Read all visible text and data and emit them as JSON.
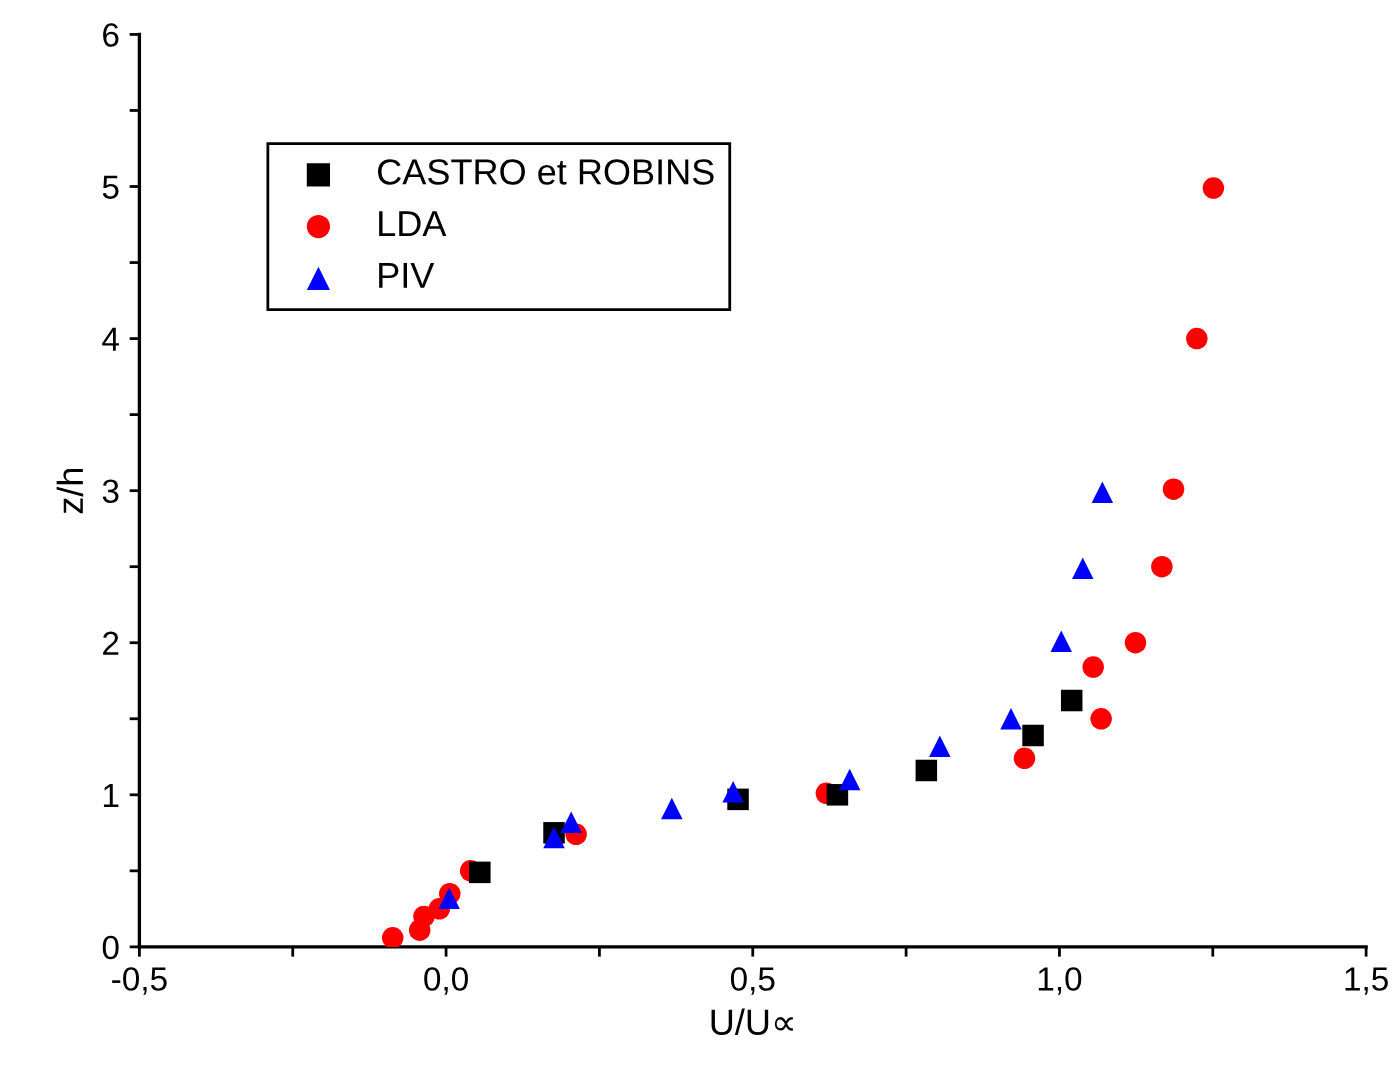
{
  "chart_data": {
    "type": "scatter",
    "xlabel": "U/U∝",
    "ylabel": "z/h",
    "xlim": [
      -0.5,
      1.5
    ],
    "ylim": [
      0,
      6
    ],
    "xticks": [
      {
        "value": -0.5,
        "label": "-0,5"
      },
      {
        "value": -0.25,
        "label": null
      },
      {
        "value": 0,
        "label": "0,0"
      },
      {
        "value": 0.25,
        "label": null
      },
      {
        "value": 0.5,
        "label": "0,5"
      },
      {
        "value": 0.75,
        "label": null
      },
      {
        "value": 1,
        "label": "1,0"
      },
      {
        "value": 1.25,
        "label": null
      },
      {
        "value": 1.5,
        "label": "1,5"
      }
    ],
    "yticks": [
      0,
      {
        "value": 0.5,
        "label": null
      },
      1,
      {
        "value": 1.5,
        "label": null
      },
      2,
      {
        "value": 2.5,
        "label": null
      },
      3,
      {
        "value": 3.5,
        "label": null
      },
      4,
      {
        "value": 4.5,
        "label": null
      },
      5,
      {
        "value": 5.5,
        "label": null
      },
      6
    ],
    "grid": false,
    "legend": "top left",
    "series": [
      {
        "name": "CASTRO et ROBINS",
        "color": "#000000",
        "marker": "square",
        "x": [
          0.055,
          0.176,
          0.476,
          0.638,
          0.783,
          0.957,
          1.02
        ],
        "values": [
          0.49,
          0.75,
          0.97,
          1.0,
          1.16,
          1.39,
          1.62
        ]
      },
      {
        "name": "LDA",
        "color": "#ff0000",
        "marker": "circle",
        "x": [
          -0.087,
          -0.043,
          -0.036,
          -0.011,
          0.006,
          0.04,
          0.212,
          0.62,
          0.943,
          1.055,
          1.068,
          1.124,
          1.167,
          1.186,
          1.224,
          1.251
        ],
        "values": [
          0.06,
          0.11,
          0.2,
          0.25,
          0.35,
          0.5,
          0.74,
          1.01,
          1.24,
          1.84,
          1.5,
          2.0,
          2.5,
          3.01,
          4.0,
          4.99
        ]
      },
      {
        "name": "PIV",
        "color": "#0000ff",
        "marker": "triangle",
        "x": [
          0.005,
          0.176,
          0.204,
          0.368,
          0.468,
          0.658,
          0.805,
          0.921,
          1.003,
          1.038,
          1.07
        ],
        "values": [
          0.32,
          0.72,
          0.82,
          0.91,
          1.02,
          1.1,
          1.32,
          1.5,
          2.01,
          2.49,
          2.99
        ]
      }
    ]
  }
}
